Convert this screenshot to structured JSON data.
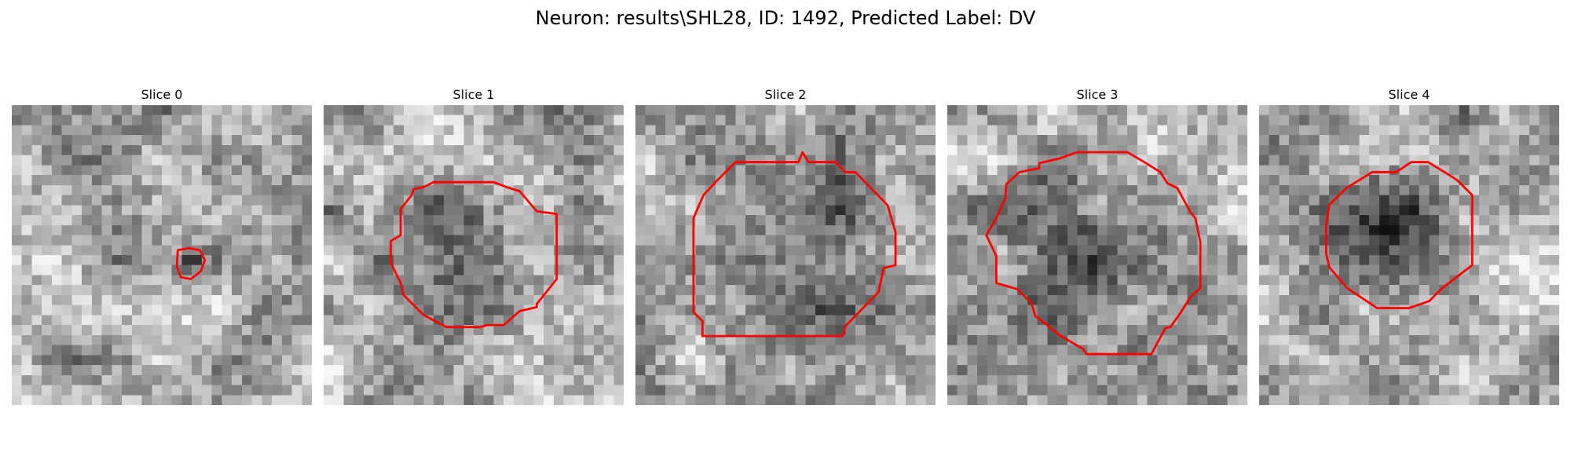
{
  "figure": {
    "title": "Neuron: results\\SHL28, ID: 1492, Predicted Label: DV"
  },
  "slices": [
    {
      "label": "Slice 0"
    },
    {
      "label": "Slice 1"
    },
    {
      "label": "Slice 2"
    },
    {
      "label": "Slice 3"
    },
    {
      "label": "Slice 4"
    }
  ],
  "colors": {
    "contour": "#ff0000",
    "background": "#ffffff"
  }
}
